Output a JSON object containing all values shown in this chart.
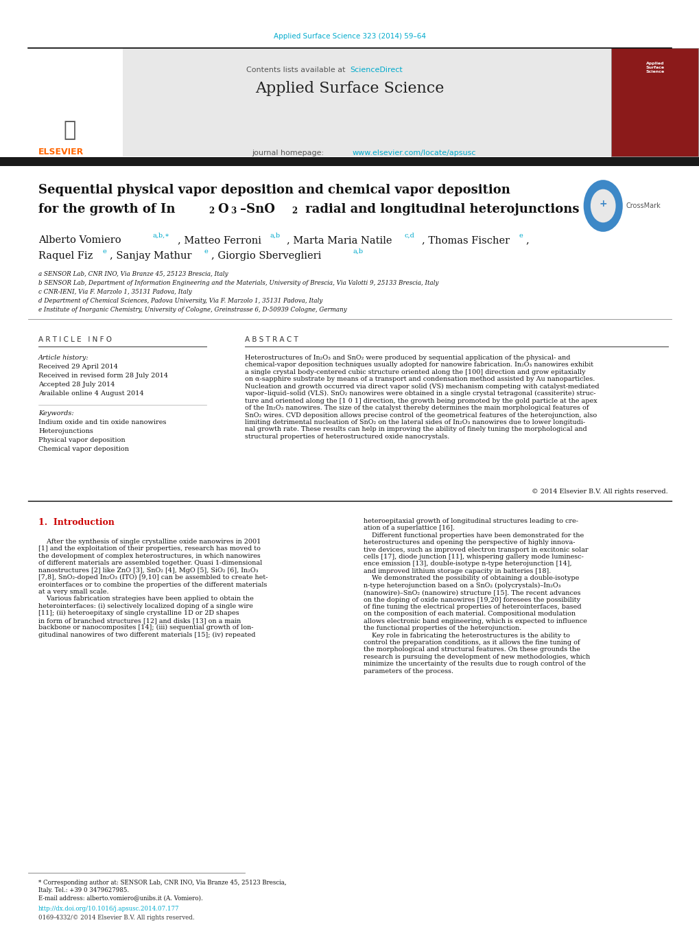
{
  "page_width": 10.2,
  "page_height": 13.51,
  "background_color": "#ffffff",
  "journal_ref_color": "#00aacc",
  "journal_ref": "Applied Surface Science 323 (2014) 59–64",
  "header_bg": "#e8e8e8",
  "sciencedirect_color": "#00aacc",
  "journal_name": "Applied Surface Science",
  "journal_homepage_url": "www.elsevier.com/locate/apsusc",
  "journal_homepage_color": "#00aacc",
  "elsevier_color": "#ff6600",
  "black_bar_color": "#1a1a1a",
  "title_line1": "Sequential physical vapor deposition and chemical vapor deposition",
  "affil_a": "a SENSOR Lab, CNR INO, Via Branze 45, 25123 Brescia, Italy",
  "affil_b": "b SENSOR Lab, Department of Information Engineering and the Materials, University of Brescia, Via Valotti 9, 25133 Brescia, Italy",
  "affil_c": "c CNR-IENI, Via F. Marzolo 1, 35131 Padova, Italy",
  "affil_d": "d Department of Chemical Sciences, Padova University, Via F. Marzolo 1, 35131 Padova, Italy",
  "affil_e": "e Institute of Inorganic Chemistry, University of Cologne, Greinstrasse 6, D-50939 Cologne, Germany",
  "article_info_header": "A R T I C L E   I N F O",
  "abstract_header": "A B S T R A C T",
  "article_history_label": "Article history:",
  "received": "Received 29 April 2014",
  "revised": "Received in revised form 28 July 2014",
  "accepted": "Accepted 28 July 2014",
  "available": "Available online 4 August 2014",
  "keywords_label": "Keywords:",
  "keyword1": "Indium oxide and tin oxide nanowires",
  "keyword2": "Heterojunctions",
  "keyword3": "Physical vapor deposition",
  "keyword4": "Chemical vapor deposition",
  "abstract_text": "Heterostructures of In₂O₃ and SnO₂ were produced by sequential application of the physical- and\nchemical-vapor deposition techniques usually adopted for nanowire fabrication. In₂O₃ nanowires exhibit\na single crystal body-centered cubic structure oriented along the [100] direction and grow epitaxially\non α-sapphire substrate by means of a transport and condensation method assisted by Au nanoparticles.\nNucleation and growth occurred via direct vapor solid (VS) mechanism competing with catalyst-mediated\nvapor–liquid–solid (VLS). SnO₂ nanowires were obtained in a single crystal tetragonal (cassiterite) struc-\nture and oriented along the [1 0 1] direction, the growth being promoted by the gold particle at the apex\nof the In₂O₃ nanowires. The size of the catalyst thereby determines the main morphological features of\nSnO₂ wires. CVD deposition allows precise control of the geometrical features of the heterojunction, also\nlimiting detrimental nucleation of SnO₂ on the lateral sides of In₂O₃ nanowires due to lower longitudi-\nnal growth rate. These results can help in improving the ability of finely tuning the morphological and\nstructural properties of heterostructured oxide nanocrystals.",
  "copyright": "© 2014 Elsevier B.V. All rights reserved.",
  "intro_header": "1.  Introduction",
  "intro_col1_p1": "    After the synthesis of single crystalline oxide nanowires in 2001\n[1] and the exploitation of their properties, research has moved to\nthe development of complex heterostructures, in which nanowires\nof different materials are assembled together. Quasi 1-dimensional\nnanostructures [2] like ZnO [3], SnO₂ [4], MgO [5], SiO₂ [6], In₂O₃\n[7,8], SnO₂-doped In₂O₃ (ITO) [9,10] can be assembled to create het-\nerointerfaces or to combine the properties of the different materials\nat a very small scale.",
  "intro_col1_p2": "    Various fabrication strategies have been applied to obtain the\nheterointerfaces: (i) selectively localized doping of a single wire\n[11]; (ii) heteroepitaxy of single crystalline 1D or 2D shapes\nin form of branched structures [12] and disks [13] on a main\nbackbone or nanocomposites [14]; (iii) sequential growth of lon-\ngitudinal nanowires of two different materials [15]; (iv) repeated",
  "intro_col2_p1": "heteroepitaxial growth of longitudinal structures leading to cre-\nation of a superlattice [16].",
  "intro_col2_p2": "    Different functional properties have been demonstrated for the\nheterostructures and opening the perspective of highly innova-\ntive devices, such as improved electron transport in excitonic solar\ncells [17], diode junction [11], whispering gallery mode luminesc-\nence emission [13], double-isotype n-type heterojunction [14],\nand improved lithium storage capacity in batteries [18].",
  "intro_col2_p3": "    We demonstrated the possibility of obtaining a double-isotype\nn-type heterojunction based on a SnO₂ (polycrystals)–In₂O₃\n(nanowire)–SnO₂ (nanowire) structure [15]. The recent advances\non the doping of oxide nanowires [19,20] foresees the possibility\nof fine tuning the electrical properties of heterointerfaces, based\non the composition of each material. Compositional modulation\nallows electronic band engineering, which is expected to influence\nthe functional properties of the heterojunction.",
  "intro_col2_p4": "    Key role in fabricating the heterostructures is the ability to\ncontrol the preparation conditions, as it allows the fine tuning of\nthe morphological and structural features. On these grounds the\nresearch is pursuing the development of new methodologies, which\nminimize the uncertainty of the results due to rough control of the\nparameters of the process.",
  "footnote1": "* Corresponding author at: SENSOR Lab, CNR INO, Via Branze 45, 25123 Brescia,",
  "footnote2": "Italy. Tel.: +39 0 3479627985.",
  "footnote3": "E-mail address: alberto.vomiero@unibs.it (A. Vomiero).",
  "doi_text": "http://dx.doi.org/10.1016/j.apsusc.2014.07.177",
  "issn_text": "0169-4332/© 2014 Elsevier B.V. All rights reserved.",
  "ref_color": "#00aacc",
  "intro_header_color": "#cc0000"
}
